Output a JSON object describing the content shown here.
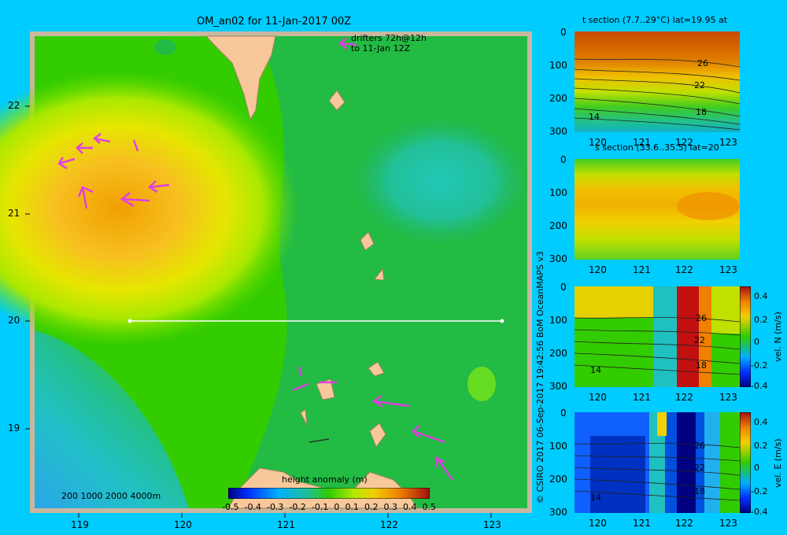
{
  "main_map": {
    "title": "OM_an02 for 11-Jan-2017 00Z",
    "drifters_line1": "drifters 72h@12h",
    "drifters_line2": "to 11-Jan 12Z",
    "x_ticks": [
      "119",
      "120",
      "121",
      "122",
      "123"
    ],
    "y_ticks": [
      "22",
      "21",
      "20",
      "19"
    ],
    "depth_legend": "200  1000  2000  4000m",
    "colorbar_title": "height anomaly (m)",
    "colorbar_ticks": [
      "-0.5",
      "-0.4",
      "-0.3",
      "-0.2",
      "-0.1",
      "0",
      "0.1",
      "0.2",
      "0.3",
      "0.4",
      "0.5"
    ],
    "colors": {
      "land": "#f9c89a",
      "frame": "#c8b8a0",
      "arrow": "#e040e0",
      "section_line": "#ffffff"
    }
  },
  "credit": "© CSIRO 2017   06-Sep-2017 19:42:56 BoM OceanMAPS v3",
  "panels": [
    {
      "title": "t section (7.7..29°C) lat=19.95 at",
      "y_ticks": [
        "0",
        "100",
        "200",
        "300"
      ],
      "x_ticks": [
        "120",
        "121",
        "122",
        "123"
      ],
      "contour_labels": [
        "26",
        "22",
        "18",
        "14"
      ]
    },
    {
      "title": "s section (33.6..35.5) lat=20",
      "y_ticks": [
        "0",
        "100",
        "200",
        "300"
      ],
      "x_ticks": [
        "120",
        "121",
        "122",
        "123"
      ],
      "contour_labels": []
    },
    {
      "title": "",
      "y_ticks": [
        "0",
        "100",
        "200",
        "300"
      ],
      "x_ticks": [
        "120",
        "121",
        "122",
        "123"
      ],
      "contour_labels": [
        "26",
        "22",
        "18",
        "14"
      ],
      "colorbar_ticks": [
        "0.4",
        "0.2",
        "0",
        "-0.2",
        "-0.4"
      ],
      "colorbar_label": "vel. N (m/s)"
    },
    {
      "title": "",
      "y_ticks": [
        "0",
        "100",
        "200",
        "300"
      ],
      "x_ticks": [
        "120",
        "121",
        "122",
        "123"
      ],
      "contour_labels": [
        "26",
        "22",
        "18",
        "14"
      ],
      "colorbar_ticks": [
        "0.4",
        "0.2",
        "0",
        "-0.2",
        "-0.4"
      ],
      "colorbar_label": "vel. E (m/s)"
    }
  ]
}
